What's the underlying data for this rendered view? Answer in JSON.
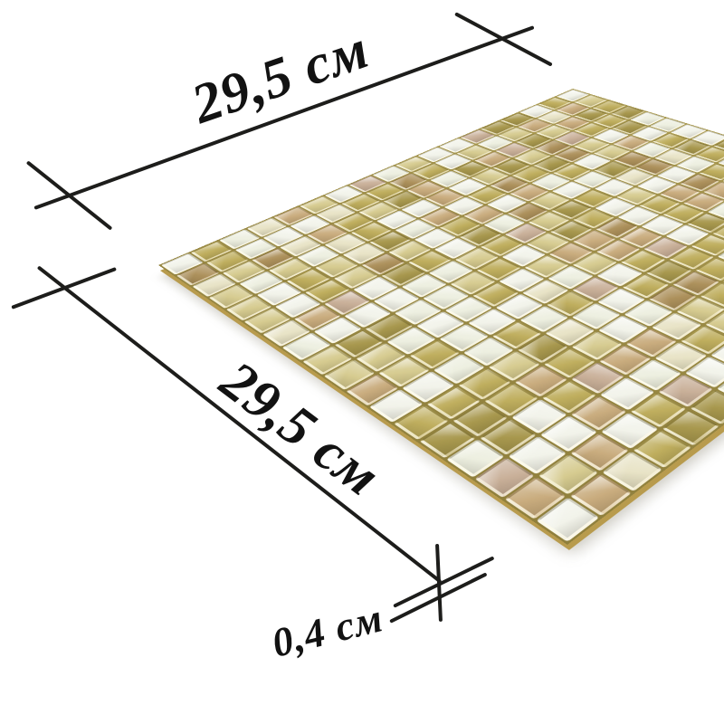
{
  "product": {
    "type": "glass-mosaic-tile-sheet",
    "description": "Square sheet of small square mosaic chips in pearl white, cream, golden-olive and tan tones, shown in perspective on white background with dimension callouts"
  },
  "dimensions": {
    "width_label": "29,5 см",
    "height_label": "29,5 см",
    "thickness_label": "0,4 см",
    "width_cm": 29.5,
    "height_cm": 29.5,
    "thickness_cm": 0.4,
    "unit": "см"
  },
  "annotation": {
    "line_color": "#1d1d1b",
    "text_color": "#121212"
  },
  "mosaic": {
    "grid_rows": 18,
    "grid_cols": 18,
    "grout_color_light": "#ac9c52",
    "grout_color_dark": "#8f7f3c",
    "palette": [
      {
        "name": "pearl-white",
        "hex": "#f2f3ea",
        "weight": 20
      },
      {
        "name": "soft-white",
        "hex": "#edefe0",
        "weight": 14
      },
      {
        "name": "cream",
        "hex": "#e8e3c6",
        "weight": 10
      },
      {
        "name": "pale-olive",
        "hex": "#d6cb90",
        "weight": 10
      },
      {
        "name": "olive-gold",
        "hex": "#bfae5e",
        "weight": 14
      },
      {
        "name": "dark-olive",
        "hex": "#a8984e",
        "weight": 9
      },
      {
        "name": "tan-pearl",
        "hex": "#c9ac7e",
        "weight": 11
      },
      {
        "name": "bronze-pearl",
        "hex": "#ad915c",
        "weight": 7
      },
      {
        "name": "blush-pearl",
        "hex": "#c9b099",
        "weight": 5
      }
    ]
  }
}
